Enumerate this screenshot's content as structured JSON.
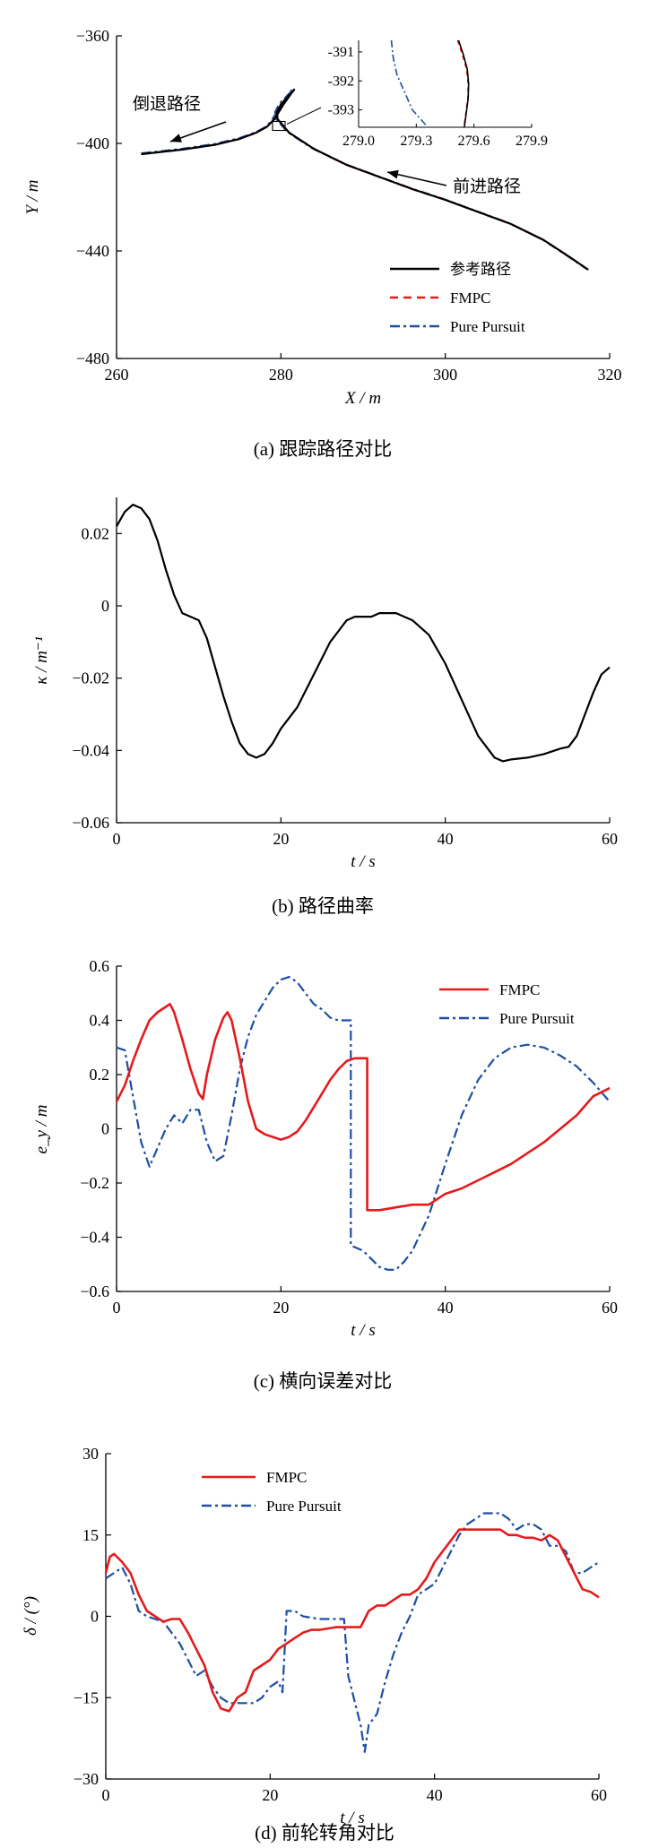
{
  "chart_data": [
    {
      "id": "a",
      "type": "line",
      "caption": "(a)  跟踪路径对比",
      "xlabel": "X / m",
      "ylabel": "Y / m",
      "xlim": [
        260,
        320
      ],
      "ylim": [
        -480,
        -360
      ],
      "xticks": [
        260,
        280,
        300,
        320
      ],
      "yticks": [
        -360,
        -400,
        -440,
        -480
      ],
      "legend": {
        "position": "bottom-right"
      },
      "annotations": {
        "reverse": "倒退路径",
        "forward": "前进路径"
      },
      "series": [
        {
          "name": "参考路径",
          "color": "#000000",
          "style": "solid",
          "x": [
            263,
            268,
            272,
            275,
            277,
            278.3,
            279.2,
            279.6,
            280.2,
            281,
            281.6,
            281.5,
            281,
            280,
            279.5,
            279.6,
            281,
            284,
            288,
            292,
            296,
            300,
            304,
            308,
            312,
            315,
            317.4
          ],
          "y": [
            -404,
            -402.3,
            -400.5,
            -398.3,
            -396,
            -393.8,
            -391,
            -389,
            -386,
            -382.5,
            -380,
            -380.5,
            -382,
            -385.5,
            -388.5,
            -391,
            -396,
            -402,
            -408,
            -412.5,
            -417,
            -421,
            -425.5,
            -430,
            -436,
            -442,
            -447
          ]
        },
        {
          "name": "FMPC",
          "color": "#e41a1c",
          "style": "dashed",
          "x": [
            263,
            268,
            272,
            275,
            277,
            278.3,
            279.2,
            279.6,
            280.2,
            281,
            281.6,
            281.5,
            281,
            280,
            279.5,
            279.6,
            281,
            284,
            288,
            292,
            296,
            300,
            304,
            308,
            312,
            315,
            317.4
          ],
          "y": [
            -404,
            -402.3,
            -400.5,
            -398.3,
            -396,
            -393.8,
            -391,
            -389,
            -386,
            -382.5,
            -380,
            -380.5,
            -382,
            -385.5,
            -388.5,
            -391,
            -396,
            -402,
            -408,
            -412.5,
            -417,
            -421,
            -425.5,
            -430,
            -436,
            -442,
            -447
          ]
        },
        {
          "name": "Pure Pursuit",
          "color": "#1f4ea1",
          "style": "dashdot",
          "x": [
            263,
            268,
            272,
            275,
            277,
            278.3,
            279.0,
            279.4,
            280.0,
            280.8,
            281.4,
            281.4,
            280.9,
            279.8,
            279.3,
            279.4,
            280.8,
            283.8,
            287.8,
            291.8,
            295.8,
            299.8,
            303.8,
            307.8,
            311.8,
            314.8,
            317.2
          ],
          "y": [
            -403.7,
            -402,
            -400.2,
            -398,
            -395.8,
            -393.6,
            -390.8,
            -388.8,
            -385.8,
            -382.3,
            -379.8,
            -380.3,
            -381.8,
            -385.3,
            -388.3,
            -390.8,
            -395.8,
            -401.8,
            -407.7,
            -412.2,
            -416.7,
            -420.7,
            -425.2,
            -429.7,
            -435.7,
            -441.7,
            -446.7
          ]
        }
      ],
      "inset": {
        "xlim": [
          279.0,
          279.9
        ],
        "ylim": [
          -393.6,
          -390.6
        ],
        "xticks": [
          "279.0",
          "279.3",
          "279.6",
          "279.9"
        ],
        "yticks": [
          "-391",
          "-392",
          "-393"
        ],
        "series": [
          {
            "name": "参考路径",
            "x": [
              279.52,
              279.545,
              279.565,
              279.572,
              279.57,
              279.56,
              279.55
            ],
            "y": [
              -390.6,
              -391.1,
              -391.6,
              -392.1,
              -392.6,
              -393.1,
              -393.6
            ]
          },
          {
            "name": "FMPC",
            "x": [
              279.515,
              279.54,
              279.562,
              279.57,
              279.568,
              279.558,
              279.548
            ],
            "y": [
              -390.6,
              -391.1,
              -391.6,
              -392.1,
              -392.6,
              -393.1,
              -393.6
            ]
          },
          {
            "name": "Pure Pursuit",
            "x": [
              279.17,
              279.18,
              279.2,
              279.24,
              279.28,
              279.32,
              279.36
            ],
            "y": [
              -390.6,
              -391.2,
              -391.8,
              -392.4,
              -393.0,
              -393.3,
              -393.6
            ]
          }
        ]
      }
    },
    {
      "id": "b",
      "type": "line",
      "caption": "(b)  路径曲率",
      "xlabel": "t / s",
      "ylabel": "κ / m⁻¹",
      "xlim": [
        0,
        60
      ],
      "ylim": [
        -0.06,
        0.03
      ],
      "xticks": [
        0,
        20,
        40,
        60
      ],
      "yticks": [
        0.02,
        0,
        -0.02,
        -0.04,
        -0.06
      ],
      "series": [
        {
          "name": "",
          "color": "#000000",
          "style": "solid",
          "x": [
            0,
            1,
            2,
            3,
            4,
            5,
            6,
            7,
            8,
            9,
            10,
            11,
            12,
            13,
            14,
            15,
            16,
            17,
            18,
            19,
            20,
            22,
            24,
            26,
            28,
            29,
            30,
            31,
            32,
            34,
            36,
            38,
            40,
            42,
            44,
            46,
            47,
            48,
            50,
            52,
            54,
            55,
            56,
            57,
            58,
            59,
            60
          ],
          "y": [
            0.022,
            0.026,
            0.028,
            0.027,
            0.024,
            0.018,
            0.01,
            0.003,
            -0.002,
            -0.003,
            -0.004,
            -0.009,
            -0.017,
            -0.025,
            -0.032,
            -0.038,
            -0.041,
            -0.042,
            -0.041,
            -0.038,
            -0.034,
            -0.028,
            -0.019,
            -0.01,
            -0.004,
            -0.003,
            -0.003,
            -0.003,
            -0.002,
            -0.002,
            -0.004,
            -0.008,
            -0.016,
            -0.026,
            -0.036,
            -0.042,
            -0.043,
            -0.0425,
            -0.042,
            -0.041,
            -0.0395,
            -0.039,
            -0.036,
            -0.03,
            -0.024,
            -0.019,
            -0.017
          ]
        }
      ]
    },
    {
      "id": "c",
      "type": "line",
      "caption": "(c)  横向误差对比",
      "xlabel": "t / s",
      "ylabel": "e_y / m",
      "xlim": [
        0,
        60
      ],
      "ylim": [
        -0.6,
        0.6
      ],
      "xticks": [
        0,
        20,
        40,
        60
      ],
      "yticks": [
        0.6,
        0.4,
        0.2,
        0,
        -0.2,
        -0.4,
        -0.6
      ],
      "legend": {
        "position": "top-right"
      },
      "series": [
        {
          "name": "FMPC",
          "color": "#e41a1c",
          "style": "solid",
          "x": [
            0,
            1,
            2,
            3,
            4,
            5,
            6,
            6.5,
            7,
            8,
            9,
            10,
            10.5,
            11,
            12,
            13,
            13.5,
            14,
            15,
            16,
            17,
            18,
            19,
            20,
            21,
            22,
            23,
            24,
            25,
            26,
            27,
            28,
            29,
            30.5,
            30.5,
            32,
            34,
            36,
            38,
            40,
            42,
            44,
            46,
            48,
            50,
            52,
            54,
            56,
            58,
            60
          ],
          "y": [
            0.1,
            0.16,
            0.25,
            0.33,
            0.4,
            0.43,
            0.45,
            0.46,
            0.43,
            0.33,
            0.22,
            0.13,
            0.11,
            0.2,
            0.33,
            0.41,
            0.43,
            0.4,
            0.26,
            0.1,
            0.0,
            -0.02,
            -0.03,
            -0.04,
            -0.03,
            -0.01,
            0.03,
            0.08,
            0.13,
            0.18,
            0.22,
            0.25,
            0.26,
            0.26,
            -0.3,
            -0.3,
            -0.29,
            -0.28,
            -0.28,
            -0.24,
            -0.22,
            -0.19,
            -0.16,
            -0.13,
            -0.09,
            -0.05,
            0.0,
            0.05,
            0.12,
            0.15
          ]
        },
        {
          "name": "Pure Pursuit",
          "color": "#1f4ea1",
          "style": "dashdot",
          "x": [
            0,
            1,
            2,
            3,
            4,
            5,
            6,
            7,
            8,
            9,
            10,
            11,
            12,
            13,
            14,
            15,
            16,
            17,
            18,
            19,
            20,
            21,
            22,
            23,
            24,
            25,
            26,
            27,
            28.5,
            28.5,
            30,
            32,
            33,
            34,
            35,
            36,
            38,
            40,
            42,
            44,
            46,
            48,
            50,
            52,
            54,
            56,
            58,
            60
          ],
          "y": [
            0.3,
            0.29,
            0.12,
            -0.05,
            -0.14,
            -0.07,
            0.0,
            0.05,
            0.02,
            0.07,
            0.07,
            -0.05,
            -0.12,
            -0.1,
            0.05,
            0.22,
            0.34,
            0.42,
            0.47,
            0.52,
            0.55,
            0.56,
            0.54,
            0.5,
            0.46,
            0.44,
            0.41,
            0.4,
            0.4,
            -0.43,
            -0.45,
            -0.51,
            -0.52,
            -0.52,
            -0.49,
            -0.45,
            -0.32,
            -0.13,
            0.05,
            0.18,
            0.26,
            0.3,
            0.31,
            0.3,
            0.27,
            0.23,
            0.17,
            0.1
          ]
        }
      ]
    },
    {
      "id": "d",
      "type": "line",
      "caption": "(d)  前轮转角对比",
      "xlabel": "t / s",
      "ylabel": "δ / (°)",
      "xlim": [
        0,
        60
      ],
      "ylim": [
        -30,
        30
      ],
      "xticks": [
        0,
        20,
        40,
        60
      ],
      "yticks": [
        30,
        15,
        0,
        -15,
        -30
      ],
      "legend": {
        "position": "top-left"
      },
      "series": [
        {
          "name": "FMPC",
          "color": "#e41a1c",
          "style": "solid",
          "x": [
            0,
            0.5,
            1,
            2,
            3,
            4,
            5,
            6,
            7,
            8,
            9,
            10,
            11,
            12,
            13,
            14,
            15,
            16,
            17,
            18,
            19,
            20,
            21,
            22,
            23,
            24,
            25,
            26,
            28,
            30,
            31,
            32,
            33,
            34,
            35,
            36,
            37,
            38,
            39,
            40,
            41,
            42,
            43,
            44,
            46,
            48,
            49,
            50,
            51,
            52,
            53,
            54,
            55,
            56,
            57,
            58,
            59,
            60
          ],
          "y": [
            8,
            11,
            11.5,
            10,
            8,
            4,
            1,
            0,
            -1,
            -0.5,
            -0.5,
            -3,
            -6,
            -9,
            -14,
            -17,
            -17.5,
            -15,
            -14,
            -10,
            -9,
            -8,
            -6,
            -5,
            -4,
            -3,
            -2.5,
            -2.5,
            -2,
            -2,
            -2,
            1,
            2,
            2,
            3,
            4,
            4,
            5,
            7,
            10,
            12,
            14,
            16,
            16,
            16,
            16,
            15,
            15,
            14.5,
            14.5,
            14,
            15,
            14,
            11,
            8,
            5,
            4.5,
            3.5
          ]
        },
        {
          "name": "Pure Pursuit",
          "color": "#1f4ea1",
          "style": "dashdot",
          "x": [
            0,
            1,
            2,
            3,
            4,
            5,
            6,
            7,
            8,
            9,
            10,
            11,
            12,
            13,
            14,
            15,
            16,
            17,
            18,
            19,
            20,
            21,
            21.5,
            22,
            23,
            24,
            26,
            28,
            29,
            29.5,
            30,
            31,
            31.5,
            32,
            33,
            34,
            35,
            36,
            37,
            38,
            39,
            40,
            41,
            42,
            43,
            44,
            45,
            46,
            47,
            48,
            49,
            50,
            51,
            52,
            53,
            54,
            55,
            56,
            57,
            58,
            59,
            60
          ],
          "y": [
            7,
            8,
            9,
            6,
            1,
            0,
            -0.5,
            -1,
            -3,
            -5,
            -8,
            -11,
            -10,
            -13,
            -15,
            -16,
            -16,
            -16,
            -16,
            -15,
            -13,
            -12,
            -14,
            1,
            1,
            0,
            -0.5,
            -0.5,
            -0.5,
            -11,
            -14,
            -20,
            -25,
            -20,
            -18,
            -12,
            -7,
            -3,
            0,
            4,
            5,
            6,
            9,
            12,
            15,
            17,
            18,
            19,
            19,
            19,
            18,
            16,
            17,
            17,
            16,
            13,
            13,
            12,
            8,
            8,
            9,
            10
          ]
        }
      ]
    }
  ]
}
